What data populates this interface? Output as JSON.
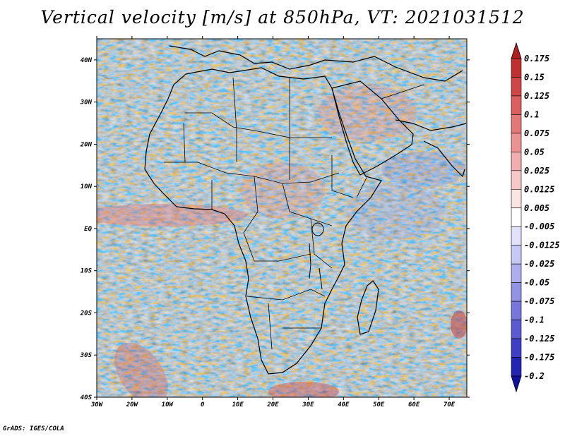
{
  "title": "Vertical velocity [m/s] at 850hPa, VT: 2021031512",
  "footer": "GrADS: IGES/COLA",
  "map": {
    "lat_labels": [
      "40N",
      "30N",
      "20N",
      "10N",
      "EQ",
      "10S",
      "20S",
      "30S",
      "40S"
    ],
    "lon_labels": [
      "30W",
      "20W",
      "10W",
      "0",
      "10E",
      "20E",
      "30E",
      "40E",
      "50E",
      "60E",
      "70E"
    ],
    "lon_range": [
      -30,
      75
    ],
    "lat_range": [
      -40,
      45
    ]
  },
  "colorbar": {
    "labels": [
      "0.175",
      "0.15",
      "0.125",
      "0.1",
      "0.075",
      "0.05",
      "0.025",
      "0.0125",
      "0.005",
      "-0.005",
      "-0.0125",
      "-0.025",
      "-0.05",
      "-0.075",
      "-0.1",
      "-0.125",
      "-0.175",
      "-0.2"
    ],
    "colors": [
      "#b01e1e",
      "#c03030",
      "#d04646",
      "#dc5e5e",
      "#e47878",
      "#ec9292",
      "#f2aeae",
      "#f7c8c8",
      "#fbe4e4",
      "#ffffff",
      "#e2e2fb",
      "#c8c8f5",
      "#aeaeee",
      "#9292e6",
      "#7676dc",
      "#5a5ad2",
      "#3e3ec6",
      "#2424b4",
      "#1010a0"
    ]
  }
}
